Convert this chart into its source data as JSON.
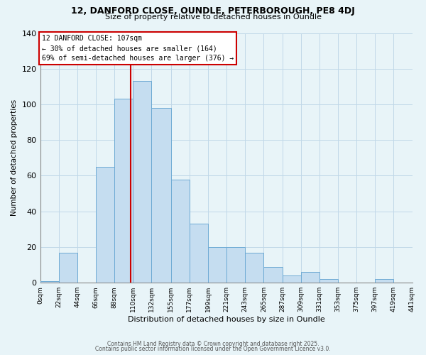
{
  "title": "12, DANFORD CLOSE, OUNDLE, PETERBOROUGH, PE8 4DJ",
  "subtitle": "Size of property relative to detached houses in Oundle",
  "xlabel": "Distribution of detached houses by size in Oundle",
  "ylabel": "Number of detached properties",
  "background_color": "#e8f4f8",
  "bar_color": "#c5ddf0",
  "bar_edge_color": "#6daad4",
  "bin_edges": [
    0,
    22,
    44,
    66,
    88,
    110,
    132,
    155,
    177,
    199,
    221,
    243,
    265,
    287,
    309,
    331,
    353,
    375,
    397,
    419,
    441
  ],
  "bar_heights": [
    1,
    17,
    0,
    65,
    103,
    113,
    98,
    58,
    33,
    20,
    20,
    17,
    9,
    4,
    6,
    2,
    0,
    0,
    2,
    0
  ],
  "tick_labels": [
    "0sqm",
    "22sqm",
    "44sqm",
    "66sqm",
    "88sqm",
    "110sqm",
    "132sqm",
    "155sqm",
    "177sqm",
    "199sqm",
    "221sqm",
    "243sqm",
    "265sqm",
    "287sqm",
    "309sqm",
    "331sqm",
    "353sqm",
    "375sqm",
    "397sqm",
    "419sqm",
    "441sqm"
  ],
  "vline_x": 107,
  "vline_color": "#cc0000",
  "annotation_title": "12 DANFORD CLOSE: 107sqm",
  "annotation_line1": "← 30% of detached houses are smaller (164)",
  "annotation_line2": "69% of semi-detached houses are larger (376) →",
  "annotation_box_color": "#ffffff",
  "annotation_box_edge": "#cc0000",
  "ylim": [
    0,
    140
  ],
  "yticks": [
    0,
    20,
    40,
    60,
    80,
    100,
    120,
    140
  ],
  "footnote1": "Contains HM Land Registry data © Crown copyright and database right 2025.",
  "footnote2": "Contains public sector information licensed under the Open Government Licence v3.0."
}
